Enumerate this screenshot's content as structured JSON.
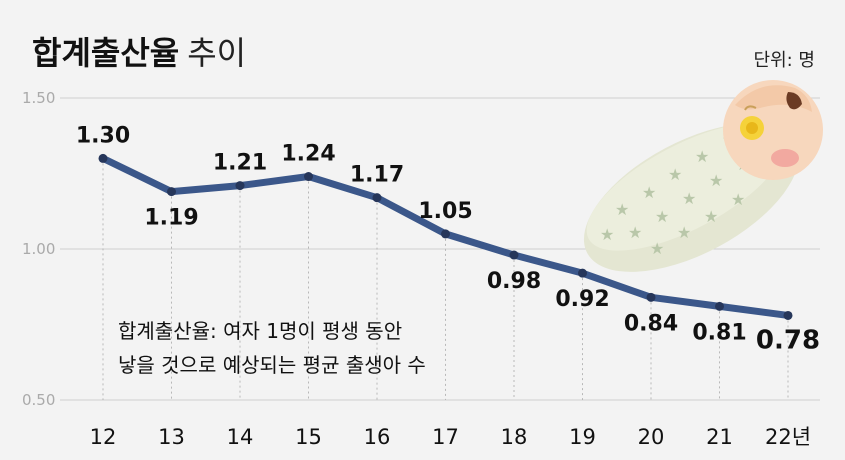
{
  "chart_data": {
    "type": "line",
    "title": "합계출산율",
    "title_suffix": "추이",
    "unit_label": "단위: 명",
    "categories": [
      "12",
      "13",
      "14",
      "15",
      "16",
      "17",
      "18",
      "19",
      "20",
      "21",
      "22년"
    ],
    "series": [
      {
        "name": "합계출산율",
        "values": [
          1.3,
          1.19,
          1.21,
          1.24,
          1.17,
          1.05,
          0.98,
          0.92,
          0.84,
          0.81,
          0.78
        ],
        "labels": [
          "1.30",
          "1.19",
          "1.21",
          "1.24",
          "1.17",
          "1.05",
          "0.98",
          "0.92",
          "0.84",
          "0.81",
          "0.78"
        ]
      }
    ],
    "yticks": [
      "1.50",
      "1.00",
      "0.50"
    ],
    "ylim": [
      0.5,
      1.5
    ],
    "xlabel": "",
    "ylabel": "",
    "note_lines": [
      "합계출산율: 여자 1명이 평생 동안",
      "낳을 것으로 예상되는 평균 출생아 수"
    ]
  },
  "colors": {
    "line": "#3b578a",
    "marker": "#26365a",
    "background": "#f3f3f3",
    "grid": "#cfcfcf",
    "dotted": "#b8b8b8"
  }
}
